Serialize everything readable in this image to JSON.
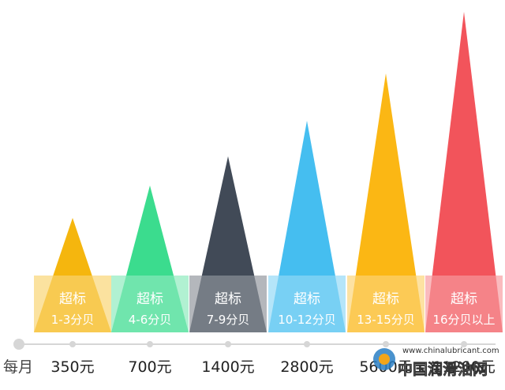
{
  "chart_data": {
    "type": "bar",
    "shape": "triangle",
    "x_axis_word": "每月",
    "categories": [
      "350元",
      "700元",
      "1400元",
      "2800元",
      "5600元",
      "11200元"
    ],
    "series": [
      {
        "labels_line1": [
          "超标",
          "超标",
          "超标",
          "超标",
          "超标",
          "超标"
        ],
        "labels_line2": [
          "1-3分贝",
          "4-6分贝",
          "7-9分贝",
          "10-12分贝",
          "13-15分贝",
          "16分贝以上"
        ],
        "values": [
          350,
          700,
          1400,
          2800,
          5600,
          11200
        ],
        "colors": [
          "#F5B60E",
          "#3BDC8E",
          "#414A57",
          "#45BEF0",
          "#FBB714",
          "#F2545B"
        ]
      }
    ],
    "axis_color": "#d6d6d6",
    "legend": "none",
    "grid": false
  },
  "watermark": {
    "url": "www.chinalubricant.com",
    "name": "中国润滑油网"
  }
}
